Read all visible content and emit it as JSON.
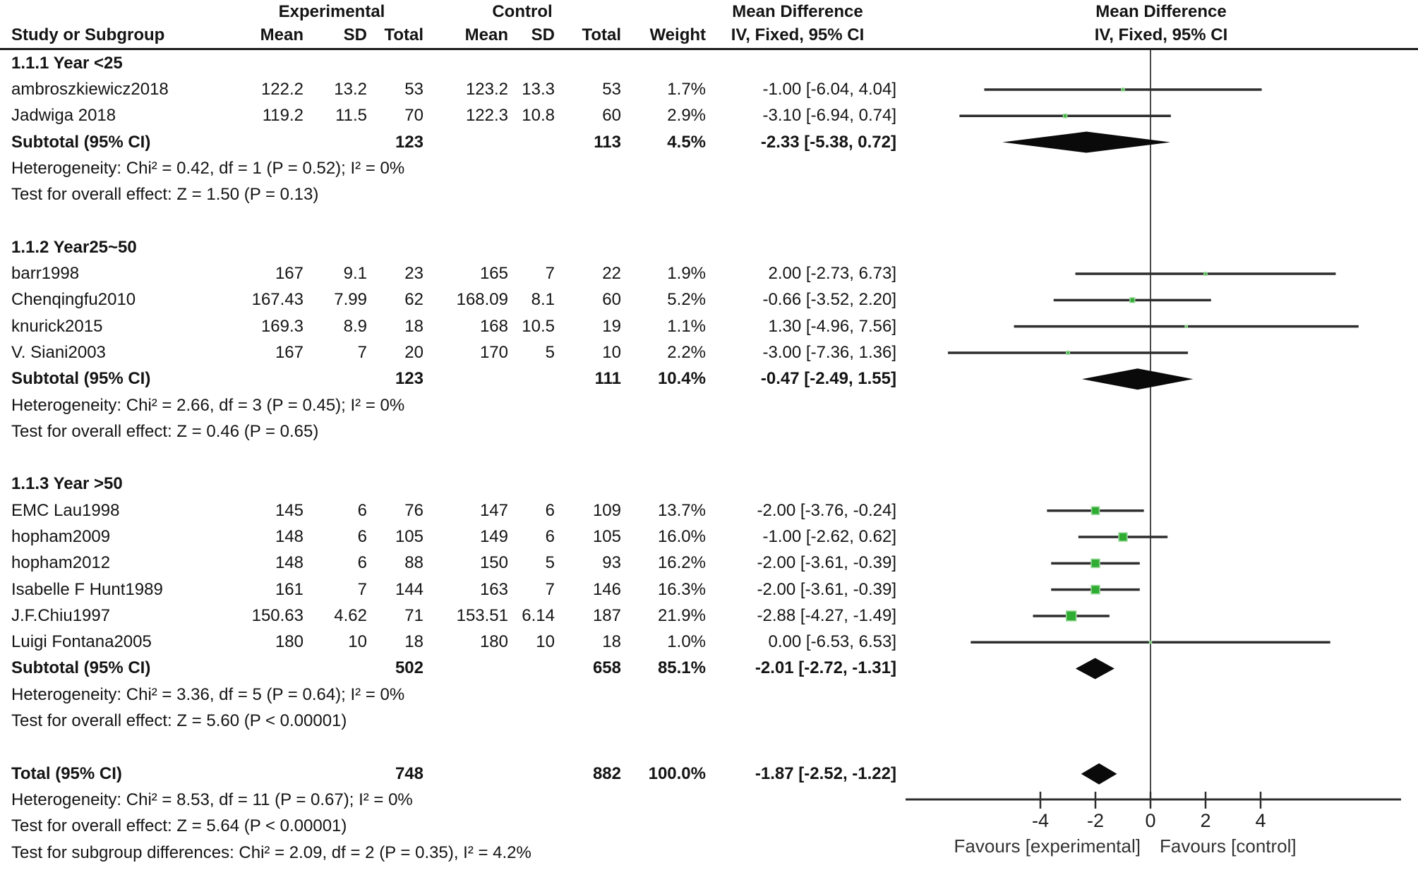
{
  "header": {
    "study_col": "Study or Subgroup",
    "exp_group": "Experimental",
    "ctrl_group": "Control",
    "md_table": "Mean Difference",
    "md_plot": "Mean Difference",
    "mean1": "Mean",
    "sd1": "SD",
    "total1": "Total",
    "mean2": "Mean",
    "sd2": "SD",
    "total2": "Total",
    "weight": "Weight",
    "ci_table": "IV, Fixed, 95% CI",
    "ci_plot": "IV, Fixed, 95% CI"
  },
  "chart_data": {
    "type": "forest",
    "effect_measure": "Mean Difference",
    "method": "IV, Fixed, 95% CI",
    "axis": {
      "ticks": [
        "-4",
        "-2",
        "0",
        "2",
        "4"
      ],
      "tick_values": [
        -4,
        -2,
        0,
        2,
        4
      ],
      "xmin": -8.9,
      "xmax": 9.1,
      "favours_left": "Favours [experimental]",
      "favours_right": "Favours [control]"
    },
    "groups": [
      {
        "label": "1.1.1 Year <25",
        "studies": [
          {
            "name": "ambroszkiewicz2018",
            "exp": {
              "mean": "122.2",
              "sd": "13.2",
              "total": "53"
            },
            "ctrl": {
              "mean": "123.2",
              "sd": "13.3",
              "total": "53"
            },
            "weight": "1.7%",
            "weight_num": 1.7,
            "md": -1.0,
            "lo": -6.04,
            "hi": 4.04,
            "ci": "-1.00 [-6.04, 4.04]"
          },
          {
            "name": "Jadwiga 2018",
            "exp": {
              "mean": "119.2",
              "sd": "11.5",
              "total": "70"
            },
            "ctrl": {
              "mean": "122.3",
              "sd": "10.8",
              "total": "60"
            },
            "weight": "2.9%",
            "weight_num": 2.9,
            "md": -3.1,
            "lo": -6.94,
            "hi": 0.74,
            "ci": "-3.10 [-6.94, 0.74]"
          }
        ],
        "subtotal": {
          "label": "Subtotal (95% CI)",
          "exp_total": "123",
          "ctrl_total": "113",
          "weight": "4.5%",
          "md": -2.33,
          "lo": -5.38,
          "hi": 0.72,
          "ci": "-2.33 [-5.38, 0.72]"
        },
        "heterogeneity": "Heterogeneity: Chi² = 0.42, df = 1 (P = 0.52); I² = 0%",
        "overall_effect": "Test for overall effect: Z = 1.50 (P = 0.13)"
      },
      {
        "label": "1.1.2 Year25~50",
        "studies": [
          {
            "name": "barr1998",
            "exp": {
              "mean": "167",
              "sd": "9.1",
              "total": "23"
            },
            "ctrl": {
              "mean": "165",
              "sd": "7",
              "total": "22"
            },
            "weight": "1.9%",
            "weight_num": 1.9,
            "md": 2.0,
            "lo": -2.73,
            "hi": 6.73,
            "ci": "2.00 [-2.73, 6.73]"
          },
          {
            "name": "Chenqingfu2010",
            "exp": {
              "mean": "167.43",
              "sd": "7.99",
              "total": "62"
            },
            "ctrl": {
              "mean": "168.09",
              "sd": "8.1",
              "total": "60"
            },
            "weight": "5.2%",
            "weight_num": 5.2,
            "md": -0.66,
            "lo": -3.52,
            "hi": 2.2,
            "ci": "-0.66 [-3.52, 2.20]"
          },
          {
            "name": "knurick2015",
            "exp": {
              "mean": "169.3",
              "sd": "8.9",
              "total": "18"
            },
            "ctrl": {
              "mean": "168",
              "sd": "10.5",
              "total": "19"
            },
            "weight": "1.1%",
            "weight_num": 1.1,
            "md": 1.3,
            "lo": -4.96,
            "hi": 7.56,
            "ci": "1.30 [-4.96, 7.56]"
          },
          {
            "name": "V. Siani2003",
            "exp": {
              "mean": "167",
              "sd": "7",
              "total": "20"
            },
            "ctrl": {
              "mean": "170",
              "sd": "5",
              "total": "10"
            },
            "weight": "2.2%",
            "weight_num": 2.2,
            "md": -3.0,
            "lo": -7.36,
            "hi": 1.36,
            "ci": "-3.00 [-7.36, 1.36]"
          }
        ],
        "subtotal": {
          "label": "Subtotal (95% CI)",
          "exp_total": "123",
          "ctrl_total": "111",
          "weight": "10.4%",
          "md": -0.47,
          "lo": -2.49,
          "hi": 1.55,
          "ci": "-0.47 [-2.49, 1.55]"
        },
        "heterogeneity": "Heterogeneity: Chi² = 2.66, df = 3 (P = 0.45); I² = 0%",
        "overall_effect": "Test for overall effect: Z = 0.46 (P = 0.65)"
      },
      {
        "label": "1.1.3 Year >50",
        "studies": [
          {
            "name": "EMC Lau1998",
            "exp": {
              "mean": "145",
              "sd": "6",
              "total": "76"
            },
            "ctrl": {
              "mean": "147",
              "sd": "6",
              "total": "109"
            },
            "weight": "13.7%",
            "weight_num": 13.7,
            "md": -2.0,
            "lo": -3.76,
            "hi": -0.24,
            "ci": "-2.00 [-3.76, -0.24]"
          },
          {
            "name": "hopham2009",
            "exp": {
              "mean": "148",
              "sd": "6",
              "total": "105"
            },
            "ctrl": {
              "mean": "149",
              "sd": "6",
              "total": "105"
            },
            "weight": "16.0%",
            "weight_num": 16.0,
            "md": -1.0,
            "lo": -2.62,
            "hi": 0.62,
            "ci": "-1.00 [-2.62, 0.62]"
          },
          {
            "name": "hopham2012",
            "exp": {
              "mean": "148",
              "sd": "6",
              "total": "88"
            },
            "ctrl": {
              "mean": "150",
              "sd": "5",
              "total": "93"
            },
            "weight": "16.2%",
            "weight_num": 16.2,
            "md": -2.0,
            "lo": -3.61,
            "hi": -0.39,
            "ci": "-2.00 [-3.61, -0.39]"
          },
          {
            "name": "Isabelle F Hunt1989",
            "exp": {
              "mean": "161",
              "sd": "7",
              "total": "144"
            },
            "ctrl": {
              "mean": "163",
              "sd": "7",
              "total": "146"
            },
            "weight": "16.3%",
            "weight_num": 16.3,
            "md": -2.0,
            "lo": -3.61,
            "hi": -0.39,
            "ci": "-2.00 [-3.61, -0.39]"
          },
          {
            "name": "J.F.Chiu1997",
            "exp": {
              "mean": "150.63",
              "sd": "4.62",
              "total": "71"
            },
            "ctrl": {
              "mean": "153.51",
              "sd": "6.14",
              "total": "187"
            },
            "weight": "21.9%",
            "weight_num": 21.9,
            "md": -2.88,
            "lo": -4.27,
            "hi": -1.49,
            "ci": "-2.88 [-4.27, -1.49]"
          },
          {
            "name": "Luigi Fontana2005",
            "exp": {
              "mean": "180",
              "sd": "10",
              "total": "18"
            },
            "ctrl": {
              "mean": "180",
              "sd": "10",
              "total": "18"
            },
            "weight": "1.0%",
            "weight_num": 1.0,
            "md": 0.0,
            "lo": -6.53,
            "hi": 6.53,
            "ci": "0.00 [-6.53, 6.53]"
          }
        ],
        "subtotal": {
          "label": "Subtotal (95% CI)",
          "exp_total": "502",
          "ctrl_total": "658",
          "weight": "85.1%",
          "md": -2.01,
          "lo": -2.72,
          "hi": -1.31,
          "ci": "-2.01 [-2.72, -1.31]"
        },
        "heterogeneity": "Heterogeneity: Chi² = 3.36, df = 5 (P = 0.64); I² = 0%",
        "overall_effect": "Test for overall effect: Z = 5.60 (P < 0.00001)"
      }
    ],
    "total": {
      "label": "Total (95% CI)",
      "exp_total": "748",
      "ctrl_total": "882",
      "weight": "100.0%",
      "md": -1.87,
      "lo": -2.52,
      "hi": -1.22,
      "ci": "-1.87 [-2.52, -1.22]"
    },
    "footer": {
      "heterogeneity": "Heterogeneity: Chi² = 8.53, df = 11 (P = 0.67); I² = 0%",
      "overall_effect": "Test for overall effect: Z = 5.64 (P < 0.00001)",
      "subgroup_diff": "Test for subgroup differences: Chi² = 2.09, df = 2 (P = 0.35), I² = 4.2%"
    },
    "colors": {
      "marker_fill": "#2fad33",
      "marker_border": "#9fda9f",
      "diamond": "#0a0a0a",
      "line": "#2e2e2e"
    }
  }
}
